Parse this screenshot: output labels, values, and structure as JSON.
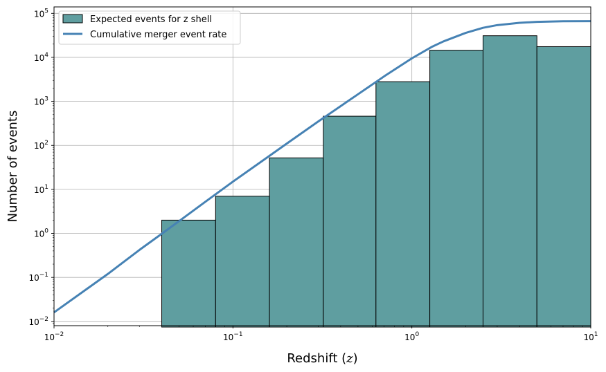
{
  "chart_data": {
    "type": "bar",
    "xscale": "log",
    "yscale": "log",
    "xlim": [
      0.01,
      10
    ],
    "ylim": [
      0.008,
      140000
    ],
    "xlabel": "Redshift ($z$)",
    "ylabel": "Number of events",
    "grid": true,
    "legend_position": "top-left",
    "x_ticks": [
      {
        "value": 0.01,
        "base": "10",
        "exp": "−2"
      },
      {
        "value": 0.1,
        "base": "10",
        "exp": "−1"
      },
      {
        "value": 1,
        "base": "10",
        "exp": "0"
      },
      {
        "value": 10,
        "base": "10",
        "exp": "1"
      }
    ],
    "y_ticks": [
      {
        "value": 0.01,
        "base": "10",
        "exp": "−2"
      },
      {
        "value": 0.1,
        "base": "10",
        "exp": "−1"
      },
      {
        "value": 1,
        "base": "10",
        "exp": "0"
      },
      {
        "value": 10,
        "base": "10",
        "exp": "1"
      },
      {
        "value": 100,
        "base": "10",
        "exp": "2"
      },
      {
        "value": 1000,
        "base": "10",
        "exp": "3"
      },
      {
        "value": 10000,
        "base": "10",
        "exp": "4"
      },
      {
        "value": 100000,
        "base": "10",
        "exp": "5"
      }
    ],
    "series": [
      {
        "name": "Expected events for z shell",
        "kind": "histogram",
        "color": "#5f9ea0",
        "edge_color": "#000000",
        "bins": [
          {
            "x0": 0.04,
            "x1": 0.08,
            "value": 2
          },
          {
            "x0": 0.08,
            "x1": 0.16,
            "value": 7
          },
          {
            "x0": 0.16,
            "x1": 0.32,
            "value": 52
          },
          {
            "x0": 0.32,
            "x1": 0.63,
            "value": 460
          },
          {
            "x0": 0.63,
            "x1": 1.26,
            "value": 2800
          },
          {
            "x0": 1.26,
            "x1": 2.5,
            "value": 14500
          },
          {
            "x0": 2.5,
            "x1": 5,
            "value": 31000
          },
          {
            "x0": 5,
            "x1": 10,
            "value": 17500
          }
        ]
      },
      {
        "name": "Cumulative merger event rate",
        "kind": "line",
        "color": "#4682b4",
        "points": [
          [
            0.01,
            0.016
          ],
          [
            0.02,
            0.12
          ],
          [
            0.03,
            0.42
          ],
          [
            0.04,
            0.98
          ],
          [
            0.05,
            1.9
          ],
          [
            0.07,
            5.2
          ],
          [
            0.1,
            15
          ],
          [
            0.15,
            48
          ],
          [
            0.2,
            110
          ],
          [
            0.3,
            350
          ],
          [
            0.4,
            780
          ],
          [
            0.5,
            1450
          ],
          [
            0.7,
            3700
          ],
          [
            1.0,
            9500
          ],
          [
            1.3,
            17500
          ],
          [
            1.5,
            23000
          ],
          [
            2.0,
            36000
          ],
          [
            2.5,
            47000
          ],
          [
            3.0,
            54000
          ],
          [
            4.0,
            61000
          ],
          [
            5.0,
            64000
          ],
          [
            7.0,
            66000
          ],
          [
            10.0,
            66500
          ]
        ]
      }
    ]
  }
}
